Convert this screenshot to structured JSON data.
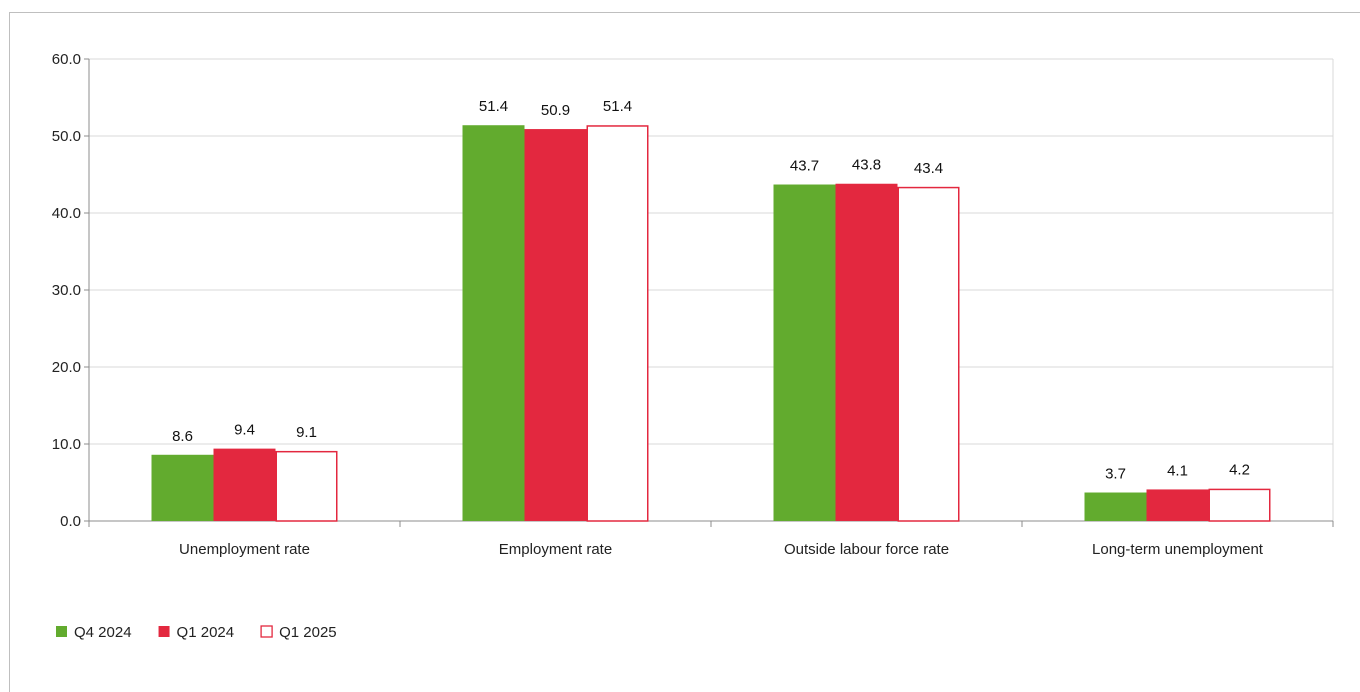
{
  "colors": {
    "q4_2024": "#62ab2e",
    "q1_2024": "#e3283f",
    "q1_2025_stroke": "#e3283f",
    "q1_2025_fill": "#ffffff",
    "grid": "#d9d9d9",
    "axis": "#8c8c8c"
  },
  "chart_data": {
    "type": "bar",
    "title": "",
    "xlabel": "",
    "ylabel": "",
    "ylim": [
      0,
      60
    ],
    "yticks": [
      "0.0",
      "10.0",
      "20.0",
      "30.0",
      "40.0",
      "50.0",
      "60.0"
    ],
    "grid": true,
    "legend_position": "bottom-left",
    "categories": [
      "Unemployment rate",
      "Employment rate",
      "Outside labour force rate",
      "Long-term unemployment"
    ],
    "series": [
      {
        "name": "Q4 2024",
        "values": [
          8.6,
          51.4,
          43.7,
          3.7
        ],
        "labels": [
          "8.6",
          "51.4",
          "43.7",
          "3.7"
        ]
      },
      {
        "name": "Q1 2024",
        "values": [
          9.4,
          50.9,
          43.8,
          4.1
        ],
        "labels": [
          "9.4",
          "50.9",
          "43.8",
          "4.1"
        ]
      },
      {
        "name": "Q1 2025",
        "values": [
          9.1,
          51.4,
          43.4,
          4.2
        ],
        "labels": [
          "9.1",
          "51.4",
          "43.4",
          "4.2"
        ]
      }
    ]
  }
}
